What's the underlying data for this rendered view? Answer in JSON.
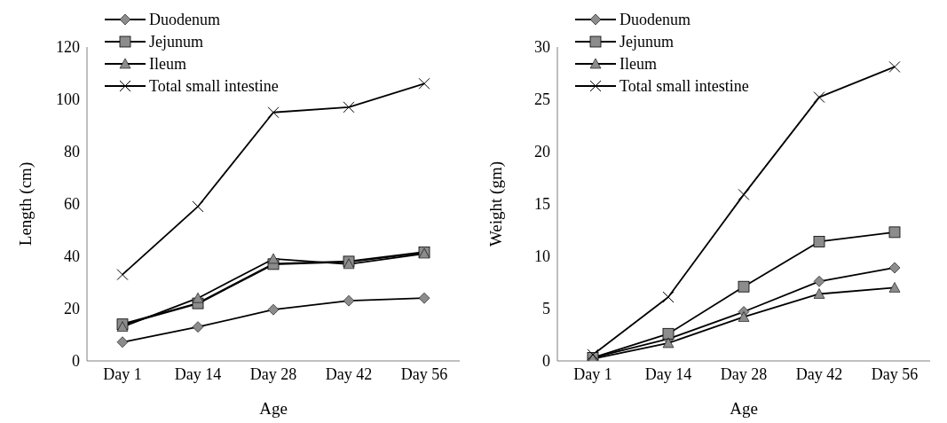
{
  "chart_data": [
    {
      "type": "line",
      "xlabel": "Age",
      "ylabel": "Length (cm)",
      "categories": [
        "Day 1",
        "Day 14",
        "Day 28",
        "Day 42",
        "Day 56"
      ],
      "ylim": [
        0,
        120
      ],
      "yticks": [
        0,
        20,
        40,
        60,
        80,
        100,
        120
      ],
      "grid": false,
      "legend": "top left",
      "series": [
        {
          "name": "Duodenum",
          "color": "#000000",
          "marker": "diamond",
          "values": [
            7.2,
            13,
            19.6,
            23,
            24
          ]
        },
        {
          "name": "Jejunum",
          "color": "#000000",
          "marker": "square",
          "values": [
            14,
            22,
            37,
            38,
            41.5
          ]
        },
        {
          "name": "Ileum",
          "color": "#000000",
          "marker": "triangle",
          "values": [
            13,
            24,
            39,
            37,
            41
          ]
        },
        {
          "name": "Total small intestine",
          "color": "#000000",
          "marker": "cross",
          "values": [
            33,
            59,
            95,
            97,
            106
          ]
        }
      ]
    },
    {
      "type": "line",
      "xlabel": "Age",
      "ylabel": "Weight (gm)",
      "categories": [
        "Day 1",
        "Day 14",
        "Day 28",
        "Day 42",
        "Day 56"
      ],
      "ylim": [
        0,
        30
      ],
      "yticks": [
        0,
        5,
        10,
        15,
        20,
        25,
        30
      ],
      "grid": false,
      "legend": "top left",
      "series": [
        {
          "name": "Duodenum",
          "color": "#000000",
          "marker": "diamond",
          "values": [
            0.3,
            2.1,
            4.7,
            7.6,
            8.9
          ]
        },
        {
          "name": "Jejunum",
          "color": "#000000",
          "marker": "square",
          "values": [
            0.3,
            2.6,
            7.1,
            11.4,
            12.3
          ]
        },
        {
          "name": "Ileum",
          "color": "#000000",
          "marker": "triangle",
          "values": [
            0.2,
            1.7,
            4.2,
            6.4,
            7.0
          ]
        },
        {
          "name": "Total small intestine",
          "color": "#000000",
          "marker": "cross",
          "values": [
            0.6,
            6.1,
            15.9,
            25.2,
            28.1
          ]
        }
      ]
    }
  ]
}
